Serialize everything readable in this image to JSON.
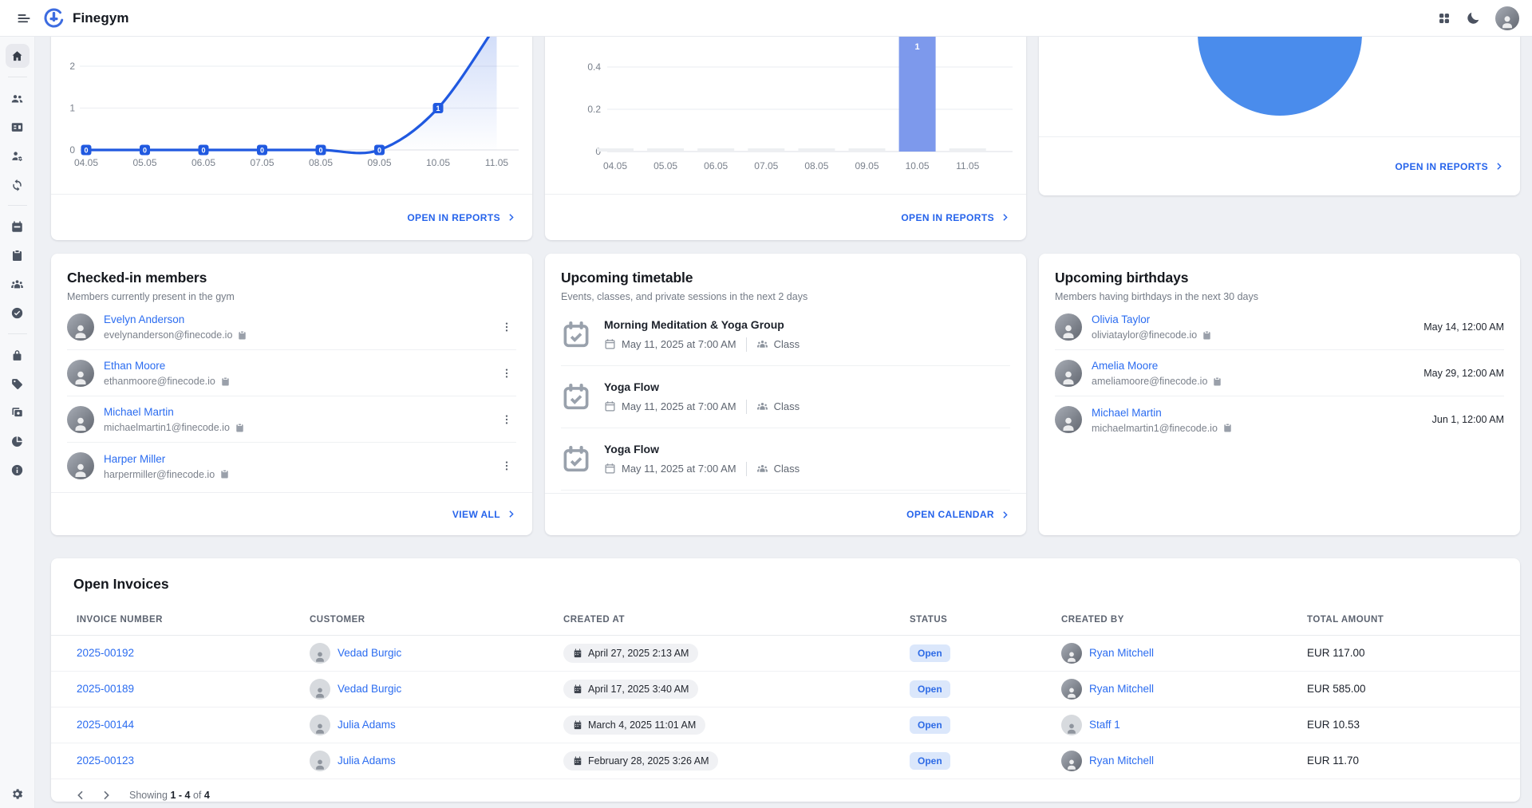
{
  "header": {
    "app_title": "Finegym"
  },
  "sidebar": {
    "sections": [
      [
        {
          "icon": "home-icon",
          "active": true
        }
      ],
      [
        {
          "icon": "users-icon"
        },
        {
          "icon": "id-card-icon"
        },
        {
          "icon": "user-gear-icon"
        },
        {
          "icon": "sync-icon"
        }
      ],
      [
        {
          "icon": "calendar-icon"
        },
        {
          "icon": "clipboard-icon"
        },
        {
          "icon": "people-group-icon"
        },
        {
          "icon": "check-circle-icon"
        }
      ],
      [
        {
          "icon": "lock-icon"
        },
        {
          "icon": "tag-icon"
        },
        {
          "icon": "copy-stack-icon"
        },
        {
          "icon": "pie-chart-icon"
        },
        {
          "icon": "info-icon"
        }
      ],
      [
        {
          "icon": "gear-icon"
        }
      ]
    ]
  },
  "links": {
    "open_in_reports": "OPEN IN REPORTS",
    "view_all": "VIEW ALL",
    "open_calendar": "OPEN CALENDAR"
  },
  "chart_data": [
    {
      "type": "line",
      "x": [
        "04.05",
        "05.05",
        "06.05",
        "07.05",
        "08.05",
        "09.05",
        "10.05",
        "11.05"
      ],
      "values": [
        0,
        0,
        0,
        0,
        0,
        0,
        1,
        3
      ],
      "point_labels": [
        "0",
        "0",
        "0",
        "0",
        "0",
        "0",
        "1",
        null
      ],
      "y_ticks": [
        0,
        1,
        2
      ],
      "color": "#2059e0",
      "grid": true,
      "legend": "none"
    },
    {
      "type": "bar",
      "x": [
        "04.05",
        "05.05",
        "06.05",
        "07.05",
        "08.05",
        "09.05",
        "10.05",
        "11.05"
      ],
      "values": [
        0,
        0,
        0,
        0,
        0,
        0,
        1,
        0
      ],
      "point_labels": [
        null,
        null,
        null,
        null,
        null,
        null,
        "1",
        null
      ],
      "y_ticks": [
        0,
        0.2,
        0.4
      ],
      "color": "#7d99ec",
      "grid": true,
      "legend": "none"
    },
    {
      "type": "pie",
      "slices": [
        {
          "value": 1,
          "color": "#4a8cec"
        }
      ],
      "legend": "none"
    }
  ],
  "checked_in": {
    "title": "Checked-in members",
    "subtitle": "Members currently present in the gym",
    "members": [
      {
        "name": "Evelyn Anderson",
        "email": "evelynanderson@finecode.io"
      },
      {
        "name": "Ethan Moore",
        "email": "ethanmoore@finecode.io"
      },
      {
        "name": "Michael Martin",
        "email": "michaelmartin1@finecode.io"
      },
      {
        "name": "Harper Miller",
        "email": "harpermiller@finecode.io"
      }
    ]
  },
  "timetable": {
    "title": "Upcoming timetable",
    "subtitle": "Events, classes, and private sessions in the next 2 days",
    "events": [
      {
        "title": "Morning Meditation & Yoga Group",
        "datetime": "May 11, 2025 at 7:00 AM",
        "type": "Class"
      },
      {
        "title": "Yoga Flow",
        "datetime": "May 11, 2025 at 7:00 AM",
        "type": "Class"
      },
      {
        "title": "Yoga Flow",
        "datetime": "May 11, 2025 at 7:00 AM",
        "type": "Class"
      }
    ]
  },
  "birthdays": {
    "title": "Upcoming birthdays",
    "subtitle": "Members having birthdays in the next 30 days",
    "members": [
      {
        "name": "Olivia Taylor",
        "email": "oliviataylor@finecode.io",
        "date": "May 14, 12:00 AM"
      },
      {
        "name": "Amelia Moore",
        "email": "ameliamoore@finecode.io",
        "date": "May 29, 12:00 AM"
      },
      {
        "name": "Michael Martin",
        "email": "michaelmartin1@finecode.io",
        "date": "Jun 1, 12:00 AM"
      }
    ]
  },
  "invoices": {
    "title": "Open Invoices",
    "columns": [
      "INVOICE NUMBER",
      "CUSTOMER",
      "CREATED AT",
      "STATUS",
      "CREATED BY",
      "TOTAL AMOUNT"
    ],
    "rows": [
      {
        "invoice_number": "2025-00192",
        "customer": "Vedad Burgic",
        "customer_avatar": "placeholder",
        "created_at": "April 27, 2025 2:13 AM",
        "status": "Open",
        "created_by": "Ryan Mitchell",
        "created_by_avatar": "photo",
        "total": "EUR 117.00"
      },
      {
        "invoice_number": "2025-00189",
        "customer": "Vedad Burgic",
        "customer_avatar": "placeholder",
        "created_at": "April 17, 2025 3:40 AM",
        "status": "Open",
        "created_by": "Ryan Mitchell",
        "created_by_avatar": "photo",
        "total": "EUR 585.00"
      },
      {
        "invoice_number": "2025-00144",
        "customer": "Julia Adams",
        "customer_avatar": "placeholder",
        "created_at": "March 4, 2025 11:01 AM",
        "status": "Open",
        "created_by": "Staff 1",
        "created_by_avatar": "placeholder",
        "total": "EUR 10.53"
      },
      {
        "invoice_number": "2025-00123",
        "customer": "Julia Adams",
        "customer_avatar": "placeholder",
        "created_at": "February 28, 2025 3:26 AM",
        "status": "Open",
        "created_by": "Ryan Mitchell",
        "created_by_avatar": "photo",
        "total": "EUR 11.70"
      }
    ],
    "pagination": {
      "showing": "Showing",
      "range": "1 - 4",
      "of": "of",
      "total": "4"
    }
  }
}
